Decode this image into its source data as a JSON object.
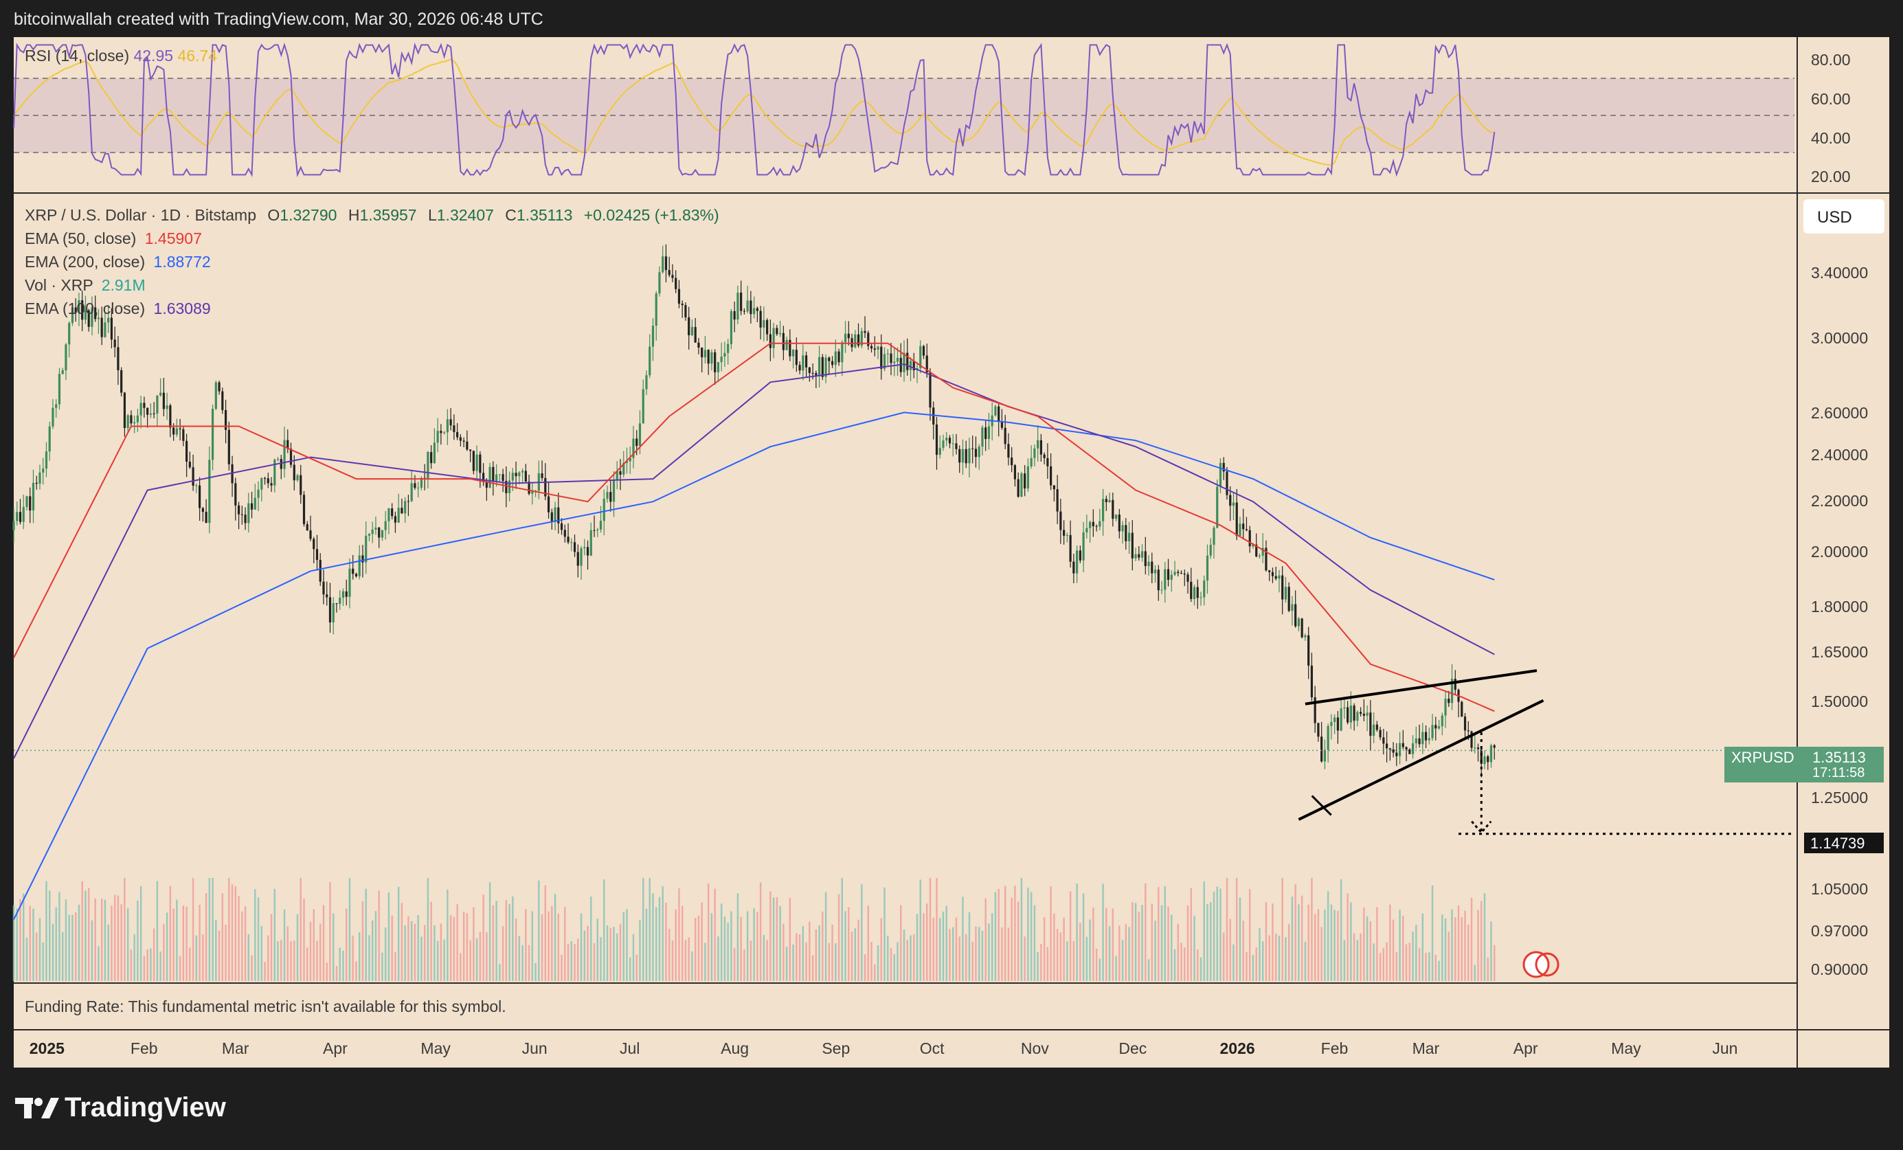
{
  "header": {
    "attribution": "bitcoinwallah created with TradingView.com, Mar 30, 2026 06:48 UTC"
  },
  "rsi": {
    "label": "RSI (14, close)",
    "value1": "42.95",
    "value2": "46.74",
    "color_rsi": "#7e57c2",
    "color_ma": "#f0c93c",
    "scale": [
      "80.00",
      "60.00",
      "40.00",
      "20.00"
    ],
    "levels": [
      70,
      50,
      30
    ]
  },
  "main": {
    "symbol_line": "XRP / U.S. Dollar · 1D · Bitstamp",
    "ohlc": {
      "o_label": "O",
      "o": "1.32790",
      "h_label": "H",
      "h": "1.35957",
      "l_label": "L",
      "l": "1.32407",
      "c_label": "C",
      "c": "1.35113",
      "change": "+0.02425 (+1.83%)"
    },
    "indicators": [
      {
        "label": "EMA (50, close)",
        "value": "1.45907",
        "color": "#e53935"
      },
      {
        "label": "EMA (200, close)",
        "value": "1.88772",
        "color": "#2962ff"
      },
      {
        "label": "Vol · XRP",
        "value": "2.91M",
        "color": "#26a69a"
      },
      {
        "label": "EMA (100, close)",
        "value": "1.63089",
        "color": "#5e35b1"
      }
    ],
    "currency_button": "USD",
    "price_scale": [
      "3.40000",
      "3.00000",
      "2.60000",
      "2.40000",
      "2.20000",
      "2.00000",
      "1.80000",
      "1.65000",
      "1.50000",
      "1.25000",
      "1.05000",
      "0.97000",
      "0.90000"
    ],
    "last_price": {
      "symbol": "XRPUSD",
      "value": "1.35113",
      "countdown": "17:11:58",
      "color": "#5a9e7a"
    },
    "target_price": "1.14739",
    "colors": {
      "up": "#26a69a",
      "down": "#ef5350",
      "candle_up": "#3d8c5a",
      "candle_down": "#222222"
    }
  },
  "funding": {
    "text": "Funding Rate: This fundamental metric isn't available for this symbol."
  },
  "time_axis": {
    "months": [
      "2025",
      "Feb",
      "Mar",
      "Apr",
      "May",
      "Jun",
      "Jul",
      "Aug",
      "Sep",
      "Oct",
      "Nov",
      "Dec",
      "2026",
      "Feb",
      "Mar",
      "Apr",
      "May",
      "Jun"
    ]
  },
  "chart_data": {
    "type": "candlestick",
    "symbol": "XRP / U.S. Dollar",
    "interval": "1D",
    "exchange": "Bitstamp",
    "x_range": [
      "2024-12-31",
      "2026-06-30"
    ],
    "y_scale": "log",
    "y_range": [
      0.86,
      4.0
    ],
    "close_path": [
      [
        "2024-12-31",
        2.08
      ],
      [
        "2025-01-08",
        2.3
      ],
      [
        "2025-01-15",
        2.9
      ],
      [
        "2025-01-18",
        3.25
      ],
      [
        "2025-01-31",
        3.05
      ],
      [
        "2025-02-03",
        2.55
      ],
      [
        "2025-02-15",
        2.7
      ],
      [
        "2025-02-28",
        2.15
      ],
      [
        "2025-03-03",
        2.85
      ],
      [
        "2025-03-10",
        2.1
      ],
      [
        "2025-03-25",
        2.45
      ],
      [
        "2025-04-07",
        1.75
      ],
      [
        "2025-04-20",
        2.08
      ],
      [
        "2025-05-01",
        2.2
      ],
      [
        "2025-05-12",
        2.55
      ],
      [
        "2025-05-25",
        2.3
      ],
      [
        "2025-06-10",
        2.28
      ],
      [
        "2025-06-22",
        1.95
      ],
      [
        "2025-07-01",
        2.2
      ],
      [
        "2025-07-10",
        2.5
      ],
      [
        "2025-07-18",
        3.55
      ],
      [
        "2025-07-25",
        3.1
      ],
      [
        "2025-08-03",
        2.85
      ],
      [
        "2025-08-10",
        3.25
      ],
      [
        "2025-08-25",
        2.95
      ],
      [
        "2025-09-05",
        2.85
      ],
      [
        "2025-09-15",
        3.05
      ],
      [
        "2025-09-28",
        2.85
      ],
      [
        "2025-10-06",
        2.95
      ],
      [
        "2025-10-10",
        2.45
      ],
      [
        "2025-10-20",
        2.4
      ],
      [
        "2025-10-28",
        2.6
      ],
      [
        "2025-11-04",
        2.25
      ],
      [
        "2025-11-10",
        2.45
      ],
      [
        "2025-11-21",
        1.95
      ],
      [
        "2025-11-30",
        2.2
      ],
      [
        "2025-12-15",
        1.9
      ],
      [
        "2025-12-31",
        1.85
      ],
      [
        "2026-01-05",
        2.35
      ],
      [
        "2026-01-10",
        2.1
      ],
      [
        "2026-01-20",
        1.95
      ],
      [
        "2026-01-31",
        1.7
      ],
      [
        "2026-02-05",
        1.3
      ],
      [
        "2026-02-07",
        1.42
      ],
      [
        "2026-02-15",
        1.45
      ],
      [
        "2026-02-28",
        1.36
      ],
      [
        "2026-03-10",
        1.38
      ],
      [
        "2026-03-17",
        1.52
      ],
      [
        "2026-03-22",
        1.4
      ],
      [
        "2026-03-26",
        1.33
      ],
      [
        "2026-03-30",
        1.35113
      ]
    ],
    "ema_50": [
      [
        "2024-12-31",
        1.62
      ],
      [
        "2025-02-05",
        2.55
      ],
      [
        "2025-03-10",
        2.55
      ],
      [
        "2025-04-15",
        2.3
      ],
      [
        "2025-05-20",
        2.3
      ],
      [
        "2025-06-25",
        2.2
      ],
      [
        "2025-07-20",
        2.6
      ],
      [
        "2025-08-20",
        3.0
      ],
      [
        "2025-09-25",
        3.0
      ],
      [
        "2025-10-15",
        2.75
      ],
      [
        "2025-11-10",
        2.6
      ],
      [
        "2025-12-10",
        2.25
      ],
      [
        "2026-01-05",
        2.1
      ],
      [
        "2026-01-25",
        1.95
      ],
      [
        "2026-02-20",
        1.6
      ],
      [
        "2026-03-20",
        1.5
      ],
      [
        "2026-03-30",
        1.45907
      ]
    ],
    "ema_100": [
      [
        "2024-12-31",
        1.33
      ],
      [
        "2025-02-10",
        2.25
      ],
      [
        "2025-04-01",
        2.4
      ],
      [
        "2025-06-01",
        2.28
      ],
      [
        "2025-07-15",
        2.3
      ],
      [
        "2025-08-20",
        2.78
      ],
      [
        "2025-09-30",
        2.88
      ],
      [
        "2025-11-01",
        2.65
      ],
      [
        "2025-12-10",
        2.45
      ],
      [
        "2026-01-15",
        2.2
      ],
      [
        "2026-02-20",
        1.85
      ],
      [
        "2026-03-30",
        1.63089
      ]
    ],
    "ema_200": [
      [
        "2024-12-31",
        0.97
      ],
      [
        "2025-02-10",
        1.65
      ],
      [
        "2025-04-01",
        1.92
      ],
      [
        "2025-06-01",
        2.08
      ],
      [
        "2025-07-15",
        2.2
      ],
      [
        "2025-08-20",
        2.45
      ],
      [
        "2025-09-30",
        2.62
      ],
      [
        "2025-11-01",
        2.57
      ],
      [
        "2025-12-10",
        2.48
      ],
      [
        "2026-01-15",
        2.3
      ],
      [
        "2026-02-20",
        2.05
      ],
      [
        "2026-03-30",
        1.88772
      ]
    ],
    "pattern_upper": [
      [
        "2026-01-31",
        1.48
      ],
      [
        "2026-04-12",
        1.58
      ]
    ],
    "pattern_lower": [
      [
        "2026-01-29",
        1.18
      ],
      [
        "2026-04-14",
        1.49
      ]
    ],
    "target_line": [
      "2026-03-19",
      "2026-06-30",
      1.14739
    ],
    "drop_arrow": [
      "2026-03-26",
      1.4,
      1.14739
    ]
  }
}
